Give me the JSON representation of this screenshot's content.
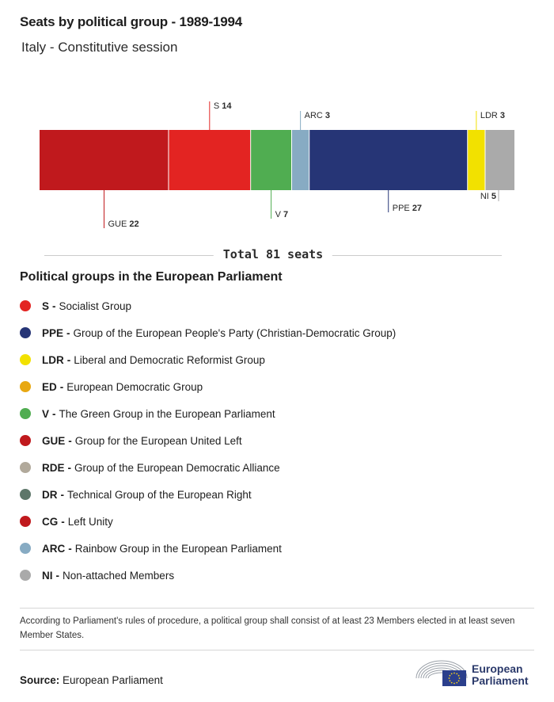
{
  "header": {
    "title": "Seats by political group - 1989-1994",
    "subtitle": "Italy - Constitutive session"
  },
  "chart_data": {
    "type": "bar",
    "orientation": "horizontal-stacked",
    "categories": [
      "GUE",
      "S",
      "V",
      "ARC",
      "PPE",
      "LDR",
      "NI"
    ],
    "values": [
      22,
      14,
      7,
      3,
      27,
      3,
      5
    ],
    "colors": [
      "#c0191d",
      "#e32422",
      "#50ad51",
      "#87abc3",
      "#263576",
      "#f2e100",
      "#aaaaaa"
    ],
    "label_positions": [
      "below",
      "above",
      "below",
      "above",
      "below",
      "above",
      "below"
    ],
    "total": 81
  },
  "total": {
    "text": "Total 81 seats"
  },
  "legend": {
    "title": "Political groups in the European Parliament",
    "items": [
      {
        "code": "S",
        "name": "Socialist Group",
        "color": "#e32422"
      },
      {
        "code": "PPE",
        "name": "Group of the European People's Party (Christian-Democratic Group)",
        "color": "#263576"
      },
      {
        "code": "LDR",
        "name": "Liberal and Democratic Reformist Group",
        "color": "#f2e100"
      },
      {
        "code": "ED",
        "name": "European Democratic Group",
        "color": "#e8a812"
      },
      {
        "code": "V",
        "name": "The Green Group in the European Parliament",
        "color": "#50ad51"
      },
      {
        "code": "GUE",
        "name": "Group for the European United Left",
        "color": "#c0191d"
      },
      {
        "code": "RDE",
        "name": "Group of the European Democratic Alliance",
        "color": "#b1a99b"
      },
      {
        "code": "DR",
        "name": "Technical Group of the European Right",
        "color": "#5d7669"
      },
      {
        "code": "CG",
        "name": "Left Unity",
        "color": "#c0191d"
      },
      {
        "code": "ARC",
        "name": "Rainbow Group in the European Parliament",
        "color": "#87abc3"
      },
      {
        "code": "NI",
        "name": "Non-attached Members",
        "color": "#aaaaaa"
      }
    ]
  },
  "footnote": {
    "text": "According to Parliament's rules of procedure, a political group shall consist of at least 23 Members elected in at least seven Member States."
  },
  "source": {
    "label": "Source:",
    "text": "European Parliament"
  },
  "logo": {
    "line1": "European",
    "line2": "Parliament"
  }
}
